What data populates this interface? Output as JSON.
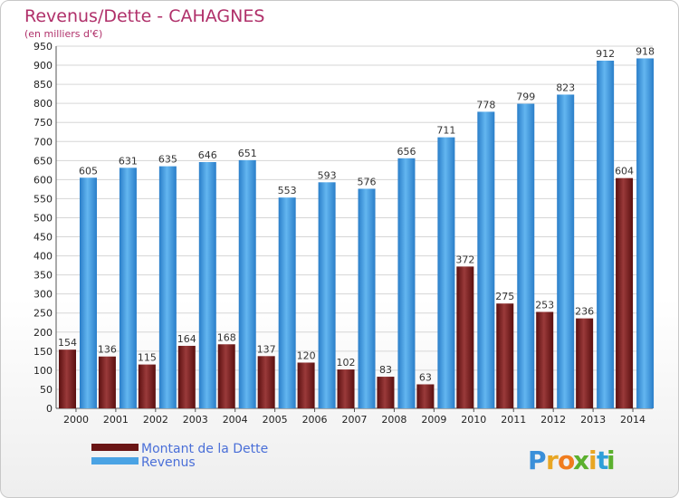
{
  "chart_data": {
    "type": "bar",
    "title": "Revenus/Dette - CAHAGNES",
    "subtitle": "(en milliers d'€)",
    "categories": [
      "2000",
      "2001",
      "2002",
      "2003",
      "2004",
      "2005",
      "2006",
      "2007",
      "2008",
      "2009",
      "2010",
      "2011",
      "2012",
      "2013",
      "2014"
    ],
    "series": [
      {
        "name": "Montant de la Dette",
        "color": "#7a1e1e",
        "values": [
          154,
          136,
          115,
          164,
          168,
          137,
          120,
          102,
          83,
          63,
          372,
          275,
          253,
          236,
          604
        ]
      },
      {
        "name": "Revenus",
        "color": "#4aa3e4",
        "values": [
          605,
          631,
          635,
          646,
          651,
          553,
          593,
          576,
          656,
          711,
          778,
          799,
          823,
          912,
          918
        ]
      }
    ],
    "ylim": [
      0,
      950
    ],
    "ytick_step": 50,
    "grid": true,
    "legend_position": "bottom-left"
  },
  "brand": {
    "letters": [
      "P",
      "r",
      "o",
      "x",
      "i",
      "t",
      "i"
    ],
    "colors": [
      "#3a8fd9",
      "#e8a623",
      "#f07c1e",
      "#5bb02e",
      "#e8a623",
      "#2e9fd9",
      "#5bb02e"
    ]
  }
}
